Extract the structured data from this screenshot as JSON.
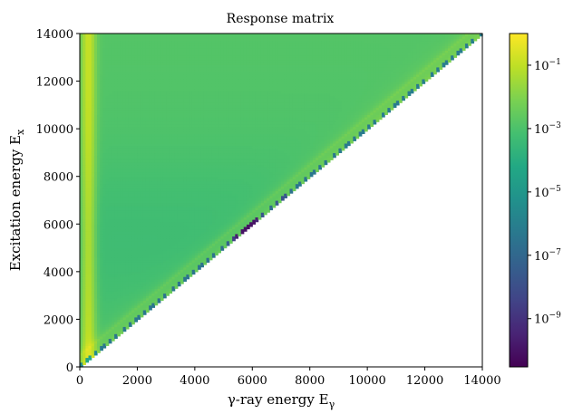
{
  "chart_data": {
    "type": "heatmap",
    "title": "Response matrix",
    "xlabel": "γ-ray energy E",
    "xlabel_sub": "γ",
    "ylabel": "Excitation energy E",
    "ylabel_sub": "x",
    "xlim": [
      0,
      14000
    ],
    "ylim": [
      0,
      14000
    ],
    "xticks": [
      "0",
      "2000",
      "4000",
      "6000",
      "8000",
      "10000",
      "12000",
      "14000"
    ],
    "yticks": [
      "0",
      "2000",
      "4000",
      "6000",
      "8000",
      "10000",
      "12000",
      "14000"
    ],
    "colorbar": {
      "scale": "log",
      "colormap": "viridis",
      "range": [
        3e-11,
        1
      ],
      "ticks": [
        {
          "value": 0.1,
          "base": "10",
          "exp": "−1"
        },
        {
          "value": 0.001,
          "base": "10",
          "exp": "−3"
        },
        {
          "value": 1e-05,
          "base": "10",
          "exp": "−5"
        },
        {
          "value": 1e-07,
          "base": "10",
          "exp": "−7"
        },
        {
          "value": 1e-09,
          "base": "10",
          "exp": "−9"
        }
      ]
    },
    "structure": {
      "nonzero_region": "E_gamma <= E_x (upper-left triangle)",
      "bin_width_keV": 100,
      "bulk_level": 0.001,
      "low_energy_band_level": 0.1,
      "diagonal_level": 0.01,
      "edge_min_level": 1e-10
    }
  }
}
